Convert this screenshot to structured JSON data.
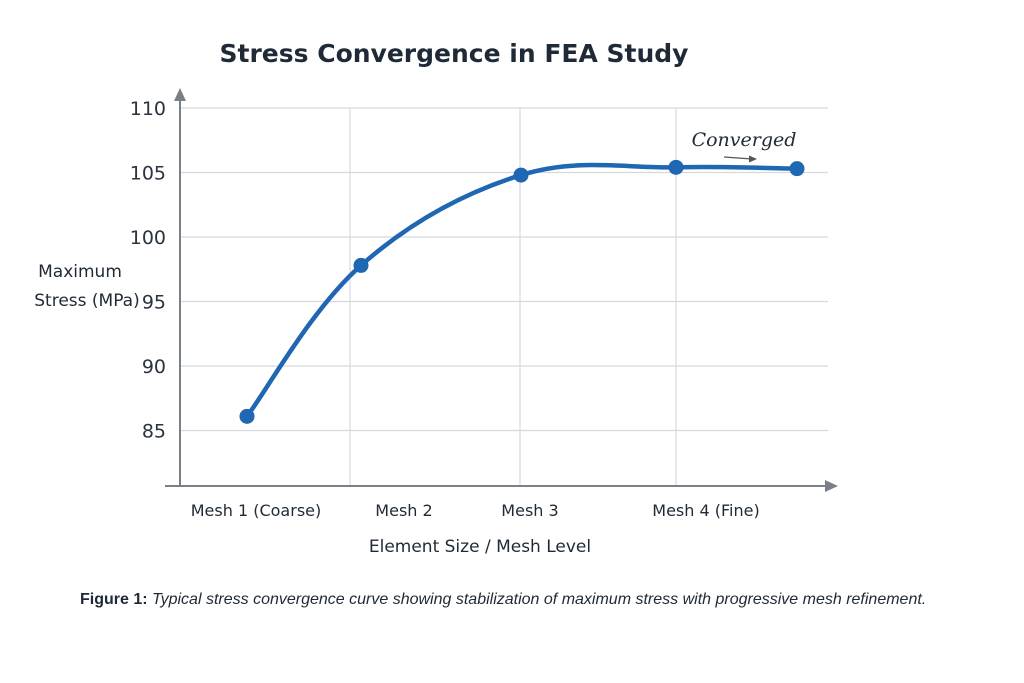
{
  "colors": {
    "series": "#1f66b3",
    "grid": "#d5d9de",
    "axis": "#7a8088"
  },
  "chart_data": {
    "type": "line",
    "title": "Stress Convergence in FEA Study",
    "xlabel": "Element Size / Mesh Level",
    "ylabel_lines": [
      "Maximum",
      "Stress (MPa)"
    ],
    "categories": [
      "Mesh 1 (Coarse)",
      "Mesh 2",
      "Mesh 3",
      "Mesh 4 (Fine)",
      ""
    ],
    "series": [
      {
        "values": [
          86.1,
          97.8,
          104.8,
          105.4,
          105.3
        ]
      }
    ],
    "y_ticks": [
      85,
      90,
      95,
      100,
      105,
      110
    ],
    "ylim": [
      80.7,
      110
    ],
    "grid": true,
    "annotation": {
      "text": "Converged"
    }
  },
  "caption": {
    "lead": "Figure 1:",
    "body": "Typical stress convergence curve showing stabilization of maximum stress with progressive mesh refinement."
  }
}
